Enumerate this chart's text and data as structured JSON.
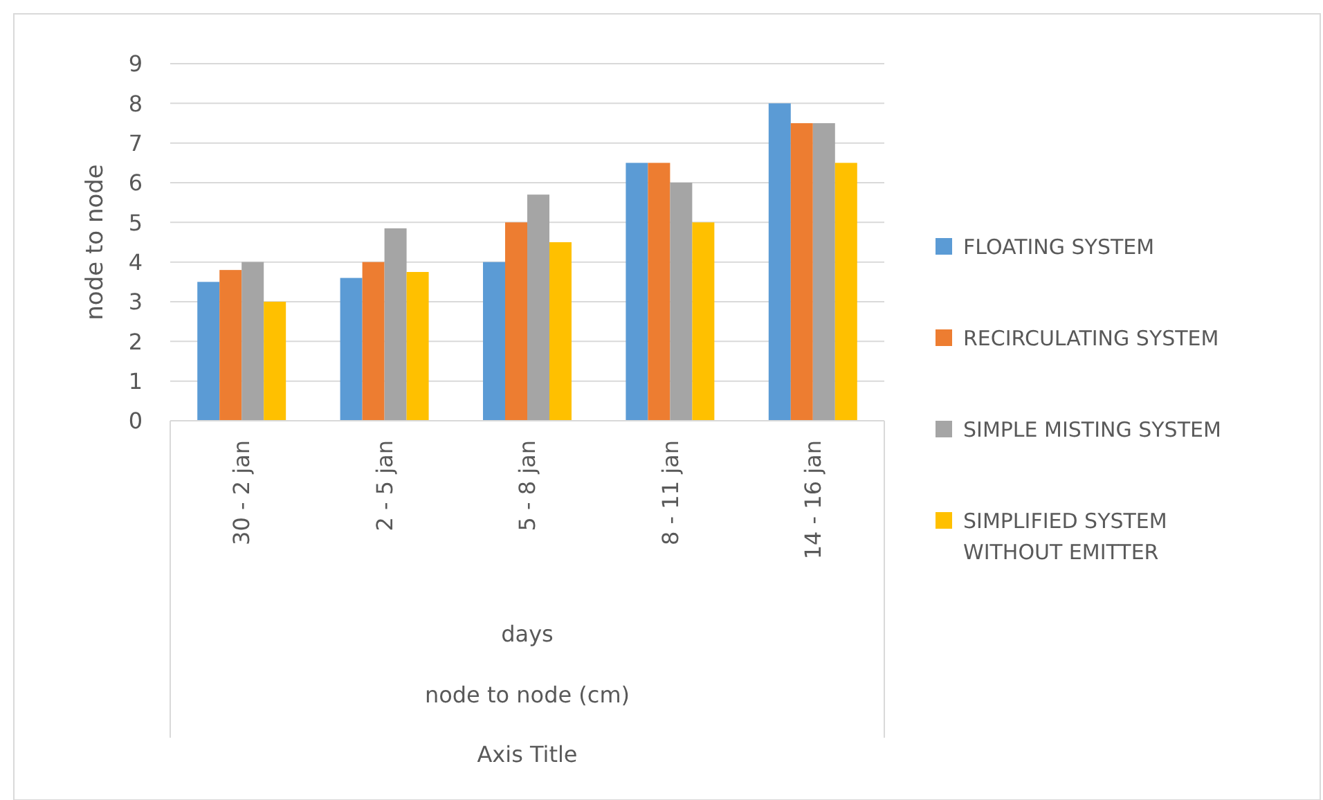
{
  "chart_data": {
    "type": "bar",
    "ylabel": "node to node",
    "annotations": [
      "days",
      "node to node (cm)",
      "Axis Title"
    ],
    "categories": [
      "30 - 2 jan",
      "2 - 5 jan",
      "5 - 8 jan",
      "8 - 11 jan",
      "14 - 16 jan"
    ],
    "series": [
      {
        "name": "FLOATING SYSTEM",
        "color": "#5b9bd5",
        "values": [
          3.5,
          3.6,
          4.0,
          6.5,
          8.0
        ]
      },
      {
        "name": "RECIRCULATING SYSTEM",
        "color": "#ed7d31",
        "values": [
          3.8,
          4.0,
          5.0,
          6.5,
          7.5
        ]
      },
      {
        "name": "SIMPLE MISTING SYSTEM",
        "color": "#a5a5a5",
        "values": [
          4.0,
          4.85,
          5.7,
          6.0,
          7.5
        ]
      },
      {
        "name": "SIMPLIFIED SYSTEM WITHOUT EMITTER",
        "color": "#ffc000",
        "values": [
          3.0,
          3.75,
          4.5,
          5.0,
          6.5
        ]
      }
    ],
    "ylim": [
      0,
      9
    ],
    "yticks": [
      0,
      1,
      2,
      3,
      4,
      5,
      6,
      7,
      8,
      9
    ],
    "grid": true,
    "legend": "right"
  }
}
